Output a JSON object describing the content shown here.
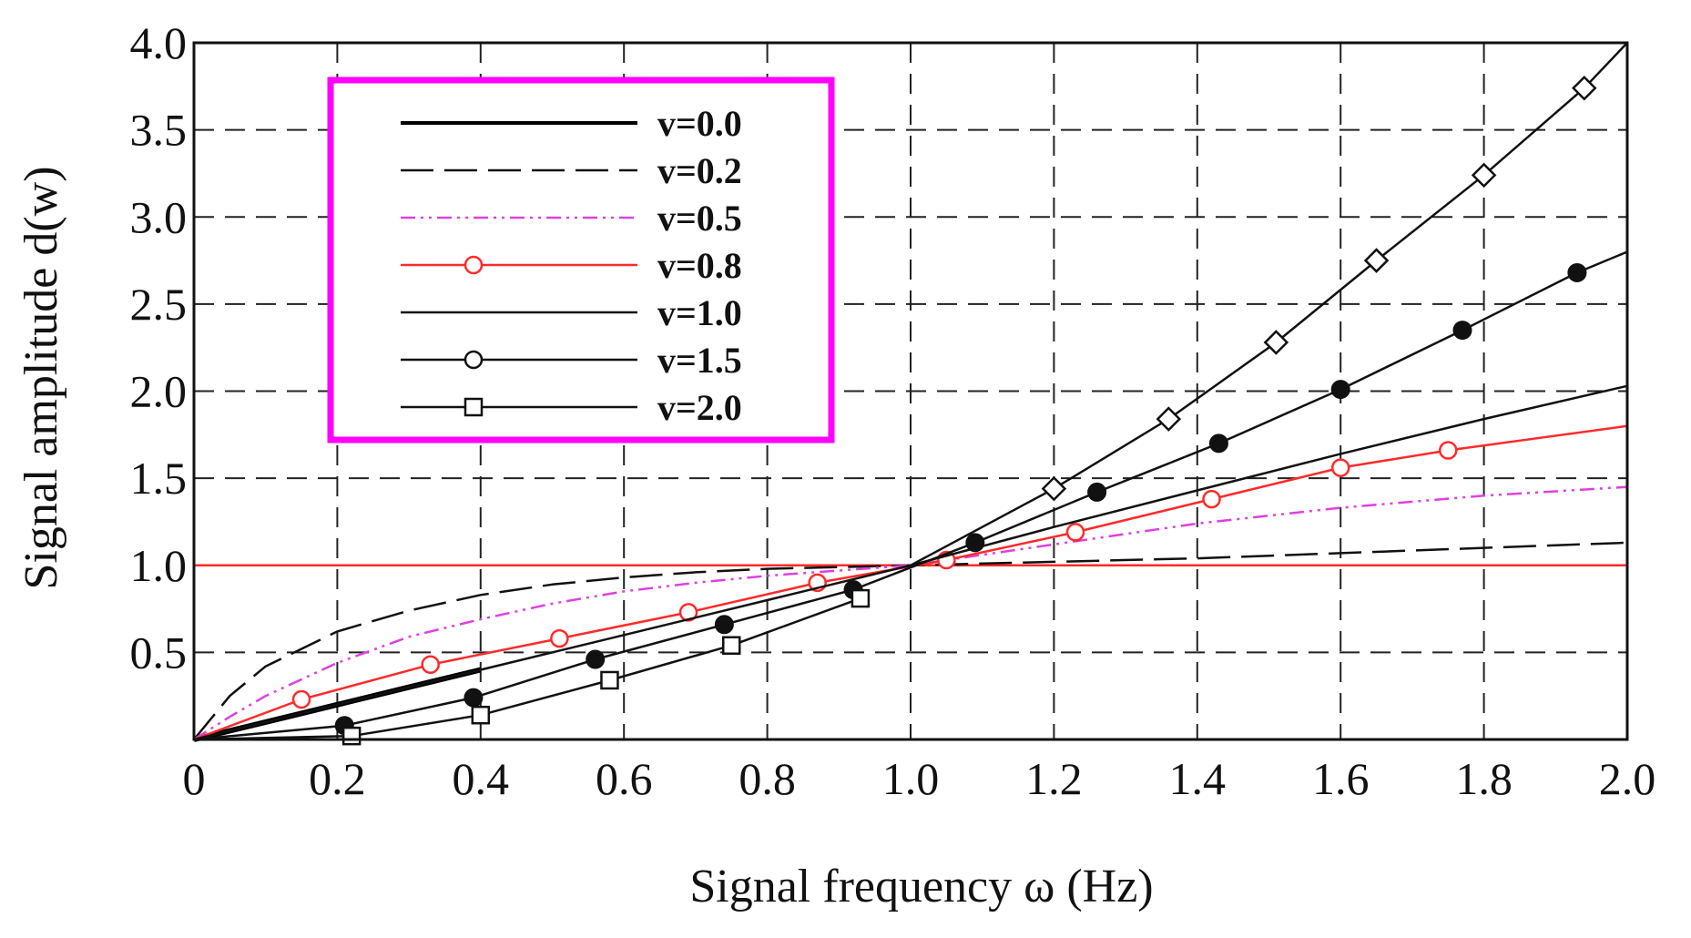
{
  "chart_data": {
    "type": "line",
    "title": "",
    "xlabel": "Signal frequency  ω  (Hz)",
    "ylabel": "Signal amplitude d(w)",
    "xlim": [
      0,
      2.0
    ],
    "ylim": [
      0,
      4.0
    ],
    "x_ticks": [
      0,
      0.2,
      0.4,
      0.6,
      0.8,
      1.0,
      1.2,
      1.4,
      1.6,
      1.8,
      2.0
    ],
    "x_tick_labels": [
      "0",
      "0.2",
      "0.4",
      "0.6",
      "0.8",
      "1.0",
      "1.2",
      "1.4",
      "1.6",
      "1.8",
      "2.0"
    ],
    "y_ticks": [
      0.5,
      1.0,
      1.5,
      2.0,
      2.5,
      3.0,
      3.5,
      4.0
    ],
    "y_tick_labels": [
      "0.5",
      "1.0",
      "1.5",
      "2.0",
      "2.5",
      "3.0",
      "3.5",
      "4.0"
    ],
    "grid": true,
    "legend_position": "top-left",
    "reference_line": {
      "y": 1.0,
      "color": "#ff2a2a"
    },
    "series": [
      {
        "name": "v=0.0",
        "color": "#000000",
        "dash": "solid",
        "marker": "none",
        "legend_marker": "none",
        "x": [
          0,
          0.1,
          0.2,
          0.3,
          0.4
        ],
        "y": [
          0,
          0.1,
          0.2,
          0.3,
          0.4
        ]
      },
      {
        "name": "v=0.2",
        "color": "#111111",
        "dash": "long-dash",
        "marker": "none",
        "legend_marker": "none",
        "x": [
          0,
          0.05,
          0.1,
          0.2,
          0.3,
          0.4,
          0.5,
          0.6,
          0.7,
          0.8,
          0.9,
          1.0,
          1.2,
          1.4,
          1.6,
          1.8,
          2.0
        ],
        "y": [
          0,
          0.25,
          0.42,
          0.62,
          0.74,
          0.83,
          0.89,
          0.93,
          0.96,
          0.98,
          0.99,
          1.0,
          1.02,
          1.04,
          1.07,
          1.1,
          1.13
        ]
      },
      {
        "name": "v=0.5",
        "color": "#e040e0",
        "dash": "dash-dot-dot",
        "marker": "none",
        "legend_marker": "none",
        "x": [
          0,
          0.05,
          0.1,
          0.2,
          0.3,
          0.4,
          0.5,
          0.6,
          0.7,
          0.8,
          0.9,
          1.0,
          1.2,
          1.4,
          1.6,
          1.8,
          2.0
        ],
        "y": [
          0,
          0.13,
          0.25,
          0.44,
          0.59,
          0.69,
          0.78,
          0.85,
          0.9,
          0.94,
          0.97,
          1.0,
          1.12,
          1.24,
          1.33,
          1.4,
          1.45
        ]
      },
      {
        "name": "v=0.8",
        "color": "#ff2a2a",
        "dash": "solid",
        "marker": "open-circle",
        "legend_marker": "open-circle",
        "x": [
          0,
          0.15,
          0.33,
          0.51,
          0.69,
          0.87,
          1.05,
          1.23,
          1.42,
          1.6,
          1.75,
          2.0
        ],
        "y": [
          0,
          0.23,
          0.43,
          0.58,
          0.73,
          0.9,
          1.03,
          1.19,
          1.38,
          1.56,
          1.66,
          1.8
        ]
      },
      {
        "name": "v=1.0",
        "color": "#111111",
        "dash": "solid",
        "marker": "none",
        "legend_marker": "none",
        "x": [
          0,
          0.2,
          0.4,
          0.6,
          0.8,
          1.0,
          1.2,
          1.4,
          1.6,
          1.8,
          2.0
        ],
        "y": [
          0,
          0.2,
          0.4,
          0.6,
          0.8,
          1.0,
          1.22,
          1.43,
          1.64,
          1.84,
          2.03
        ]
      },
      {
        "name": "v=1.5",
        "color": "#111111",
        "dash": "solid",
        "marker": "filled-circle",
        "legend_marker": "open-circle",
        "x": [
          0,
          0.21,
          0.39,
          0.56,
          0.74,
          0.92,
          1.09,
          1.26,
          1.43,
          1.6,
          1.77,
          1.93,
          2.0
        ],
        "y": [
          0,
          0.08,
          0.24,
          0.46,
          0.66,
          0.86,
          1.13,
          1.42,
          1.7,
          2.01,
          2.35,
          2.68,
          2.8
        ]
      },
      {
        "name": "v=2.0",
        "color": "#111111",
        "dash": "solid",
        "marker": "open-square",
        "legend_marker": "open-square",
        "x": [
          0,
          0.22,
          0.4,
          0.58,
          0.75,
          0.93
        ],
        "y": [
          0,
          0.02,
          0.14,
          0.34,
          0.54,
          0.81
        ]
      },
      {
        "name": "",
        "color": "#111111",
        "dash": "solid",
        "marker": "open-diamond",
        "legend_marker": "none",
        "x": [
          1.0,
          1.2,
          1.36,
          1.51,
          1.65,
          1.8,
          1.94,
          2.0
        ],
        "y": [
          1.0,
          1.44,
          1.84,
          2.28,
          2.75,
          3.24,
          3.74,
          4.0
        ]
      }
    ]
  }
}
